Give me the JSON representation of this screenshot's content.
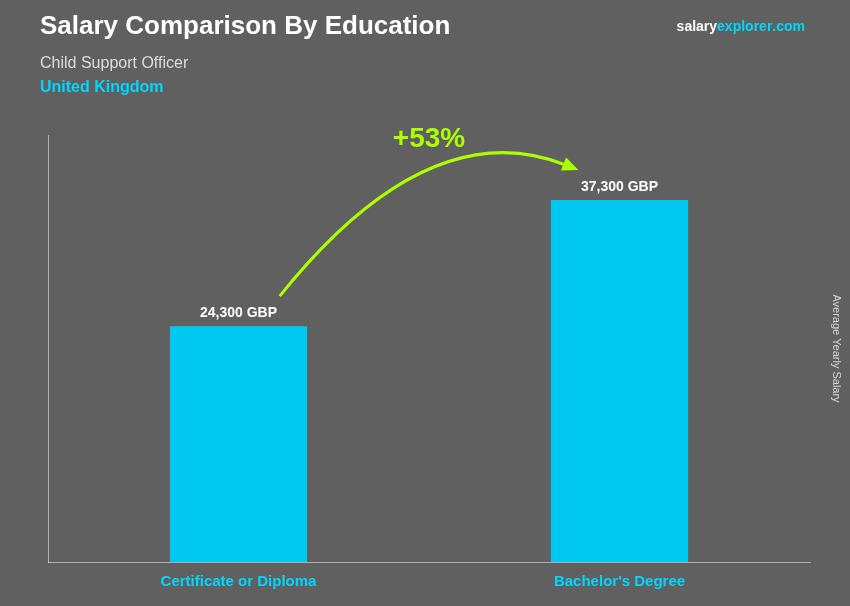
{
  "chart_data": {
    "type": "bar",
    "title": "Salary Comparison By Education",
    "subtitle": "Child Support Officer",
    "annotations": [
      "United Kingdom",
      "salary",
      "explorer",
      ".com",
      "+53%"
    ],
    "ylabel": "Average Yearly Salary",
    "categories": [
      "Certificate or Diploma",
      "Bachelor's Degree"
    ],
    "values": [
      24300,
      37300
    ],
    "value_labels": [
      "24,300 GBP",
      "37,300 GBP"
    ],
    "data_labels": true,
    "color": "#00c8f0",
    "ylim": [
      0,
      44000
    ],
    "grid": false,
    "tick_labels": "x"
  }
}
